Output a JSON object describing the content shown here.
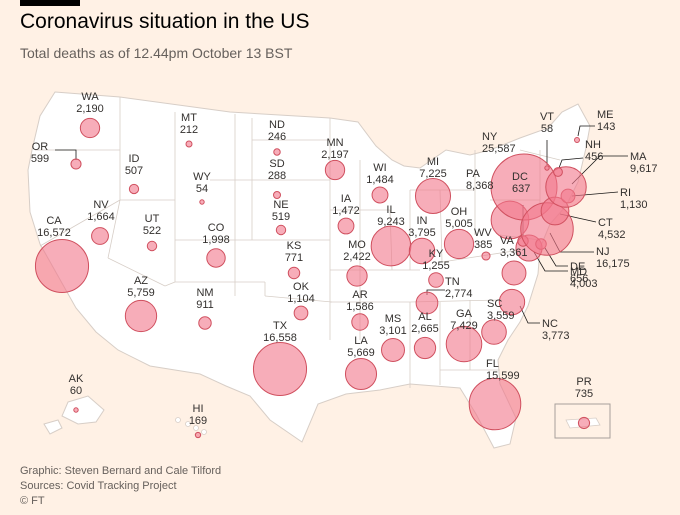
{
  "header": {
    "title": "Coronavirus situation in the US",
    "subtitle": "Total deaths as of 12.44pm October 13 BST"
  },
  "footer": {
    "graphic": "Graphic: Steven Bernard and Cale Tilford",
    "sources": "Sources: Covid Tracking Project",
    "copyright": "© FT"
  },
  "colors": {
    "background": "#FFF1E5",
    "land": "#FFFFFF",
    "state_border": "#D7CEC7",
    "bubble_fill": "#F2778B",
    "bubble_stroke": "#D0505F",
    "text": "#33302E"
  },
  "chart_data": {
    "type": "proportional-symbol-map",
    "value_label": "Total deaths",
    "states": [
      {
        "code": "WA",
        "deaths": 2190
      },
      {
        "code": "OR",
        "deaths": 599
      },
      {
        "code": "CA",
        "deaths": 16572
      },
      {
        "code": "NV",
        "deaths": 1664
      },
      {
        "code": "ID",
        "deaths": 507
      },
      {
        "code": "MT",
        "deaths": 212
      },
      {
        "code": "WY",
        "deaths": 54
      },
      {
        "code": "UT",
        "deaths": 522
      },
      {
        "code": "AZ",
        "deaths": 5759
      },
      {
        "code": "CO",
        "deaths": 1998
      },
      {
        "code": "NM",
        "deaths": 911
      },
      {
        "code": "ND",
        "deaths": 246
      },
      {
        "code": "SD",
        "deaths": 288
      },
      {
        "code": "NE",
        "deaths": 519
      },
      {
        "code": "KS",
        "deaths": 771
      },
      {
        "code": "OK",
        "deaths": 1104
      },
      {
        "code": "TX",
        "deaths": 16558
      },
      {
        "code": "MN",
        "deaths": 2197
      },
      {
        "code": "IA",
        "deaths": 1472
      },
      {
        "code": "MO",
        "deaths": 2422
      },
      {
        "code": "AR",
        "deaths": 1586
      },
      {
        "code": "LA",
        "deaths": 5669
      },
      {
        "code": "WI",
        "deaths": 1484
      },
      {
        "code": "IL",
        "deaths": 9243
      },
      {
        "code": "MI",
        "deaths": 7225
      },
      {
        "code": "IN",
        "deaths": 3795
      },
      {
        "code": "OH",
        "deaths": 5005
      },
      {
        "code": "KY",
        "deaths": 1255
      },
      {
        "code": "TN",
        "deaths": 2774
      },
      {
        "code": "MS",
        "deaths": 3101
      },
      {
        "code": "AL",
        "deaths": 2665
      },
      {
        "code": "GA",
        "deaths": 7429
      },
      {
        "code": "FL",
        "deaths": 15599
      },
      {
        "code": "SC",
        "deaths": 3559
      },
      {
        "code": "NC",
        "deaths": 3773
      },
      {
        "code": "VA",
        "deaths": 3361
      },
      {
        "code": "WV",
        "deaths": 385
      },
      {
        "code": "MD",
        "deaths": 4003
      },
      {
        "code": "DE",
        "deaths": 656
      },
      {
        "code": "DC",
        "deaths": 637
      },
      {
        "code": "PA",
        "deaths": 8368
      },
      {
        "code": "NY",
        "deaths": 25587
      },
      {
        "code": "NJ",
        "deaths": 16175
      },
      {
        "code": "CT",
        "deaths": 4532
      },
      {
        "code": "RI",
        "deaths": 1130
      },
      {
        "code": "MA",
        "deaths": 9617
      },
      {
        "code": "VT",
        "deaths": 58
      },
      {
        "code": "NH",
        "deaths": 456
      },
      {
        "code": "ME",
        "deaths": 143
      },
      {
        "code": "AK",
        "deaths": 60
      },
      {
        "code": "HI",
        "deaths": 169
      },
      {
        "code": "PR",
        "deaths": 735
      }
    ]
  }
}
